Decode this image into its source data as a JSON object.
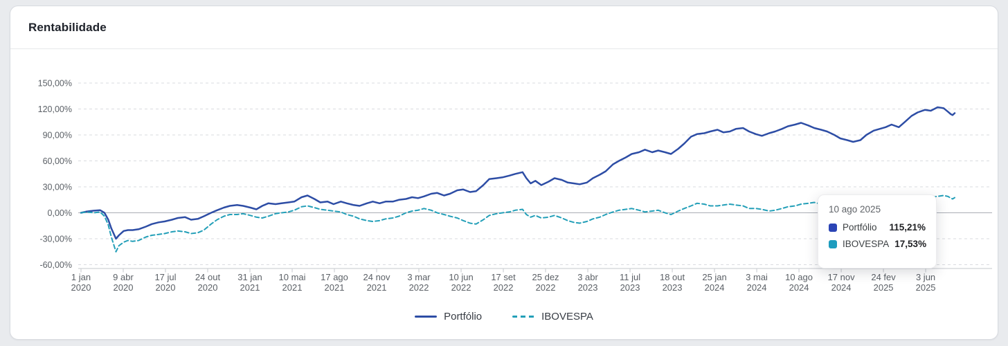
{
  "card": {
    "title": "Rentabilidade"
  },
  "tooltip": {
    "date": "10 ago 2025",
    "rows": [
      {
        "label": "Portfólio",
        "value": "115,21%",
        "color": "#2b44b5"
      },
      {
        "label": "IBOVESPA",
        "value": "17,53%",
        "color": "#1d9cbe"
      }
    ]
  },
  "chart_data": {
    "type": "line",
    "title": "Rentabilidade",
    "ylabel": "",
    "xlabel": "",
    "ylim": [
      -60,
      150
    ],
    "grid": "horizontal-dashed",
    "zero_line": true,
    "legend_position": "bottom-center",
    "yticks": [
      {
        "v": 150,
        "label": "150,00%"
      },
      {
        "v": 120,
        "label": "120,00%"
      },
      {
        "v": 90,
        "label": "90,00%"
      },
      {
        "v": 60,
        "label": "60,00%"
      },
      {
        "v": 30,
        "label": "30,00%"
      },
      {
        "v": 0,
        "label": "0,00%"
      },
      {
        "v": -30,
        "label": "-30,00%"
      },
      {
        "v": -60,
        "label": "-60,00%"
      }
    ],
    "xticks": [
      {
        "d": "2020-01-01",
        "l1": "1 jan",
        "l2": "2020"
      },
      {
        "d": "2020-04-09",
        "l1": "9 abr",
        "l2": "2020"
      },
      {
        "d": "2020-07-17",
        "l1": "17 jul",
        "l2": "2020"
      },
      {
        "d": "2020-10-24",
        "l1": "24 out",
        "l2": "2020"
      },
      {
        "d": "2021-01-31",
        "l1": "31 jan",
        "l2": "2021"
      },
      {
        "d": "2021-05-10",
        "l1": "10 mai",
        "l2": "2021"
      },
      {
        "d": "2021-08-17",
        "l1": "17 ago",
        "l2": "2021"
      },
      {
        "d": "2021-11-24",
        "l1": "24 nov",
        "l2": "2021"
      },
      {
        "d": "2022-03-03",
        "l1": "3 mar",
        "l2": "2022"
      },
      {
        "d": "2022-06-10",
        "l1": "10 jun",
        "l2": "2022"
      },
      {
        "d": "2022-09-17",
        "l1": "17 set",
        "l2": "2022"
      },
      {
        "d": "2022-12-25",
        "l1": "25 dez",
        "l2": "2022"
      },
      {
        "d": "2023-04-03",
        "l1": "3 abr",
        "l2": "2023"
      },
      {
        "d": "2023-07-11",
        "l1": "11 jul",
        "l2": "2023"
      },
      {
        "d": "2023-10-18",
        "l1": "18 out",
        "l2": "2023"
      },
      {
        "d": "2024-01-25",
        "l1": "25 jan",
        "l2": "2024"
      },
      {
        "d": "2024-05-03",
        "l1": "3 mai",
        "l2": "2024"
      },
      {
        "d": "2024-08-10",
        "l1": "10 ago",
        "l2": "2024"
      },
      {
        "d": "2024-11-17",
        "l1": "17 nov",
        "l2": "2024"
      },
      {
        "d": "2025-02-24",
        "l1": "24 fev",
        "l2": "2025"
      },
      {
        "d": "2025-06-03",
        "l1": "3 jun",
        "l2": "2025"
      }
    ],
    "x": [
      "2020-01-01",
      "2020-01-15",
      "2020-02-01",
      "2020-02-15",
      "2020-02-25",
      "2020-03-05",
      "2020-03-12",
      "2020-03-23",
      "2020-03-30",
      "2020-04-10",
      "2020-04-20",
      "2020-05-01",
      "2020-05-15",
      "2020-06-01",
      "2020-06-15",
      "2020-07-01",
      "2020-07-15",
      "2020-08-01",
      "2020-08-15",
      "2020-09-01",
      "2020-09-15",
      "2020-10-01",
      "2020-10-15",
      "2020-11-01",
      "2020-11-15",
      "2020-12-01",
      "2020-12-15",
      "2021-01-01",
      "2021-01-15",
      "2021-02-01",
      "2021-02-15",
      "2021-03-01",
      "2021-03-15",
      "2021-04-01",
      "2021-04-15",
      "2021-05-01",
      "2021-05-15",
      "2021-06-01",
      "2021-06-15",
      "2021-07-01",
      "2021-07-15",
      "2021-08-01",
      "2021-08-15",
      "2021-09-01",
      "2021-09-15",
      "2021-10-01",
      "2021-10-15",
      "2021-11-01",
      "2021-11-15",
      "2021-12-01",
      "2021-12-15",
      "2022-01-01",
      "2022-01-15",
      "2022-02-01",
      "2022-02-15",
      "2022-03-01",
      "2022-03-15",
      "2022-04-01",
      "2022-04-15",
      "2022-05-01",
      "2022-05-15",
      "2022-06-01",
      "2022-06-15",
      "2022-07-01",
      "2022-07-15",
      "2022-08-01",
      "2022-08-15",
      "2022-09-01",
      "2022-09-15",
      "2022-10-01",
      "2022-10-15",
      "2022-11-01",
      "2022-11-10",
      "2022-11-20",
      "2022-12-01",
      "2022-12-15",
      "2023-01-01",
      "2023-01-15",
      "2023-02-01",
      "2023-02-15",
      "2023-03-01",
      "2023-03-15",
      "2023-04-01",
      "2023-04-15",
      "2023-05-01",
      "2023-05-15",
      "2023-06-01",
      "2023-06-15",
      "2023-07-01",
      "2023-07-15",
      "2023-08-01",
      "2023-08-15",
      "2023-09-01",
      "2023-09-15",
      "2023-10-01",
      "2023-10-15",
      "2023-11-01",
      "2023-11-15",
      "2023-12-01",
      "2023-12-15",
      "2024-01-01",
      "2024-01-15",
      "2024-02-01",
      "2024-02-15",
      "2024-03-01",
      "2024-03-15",
      "2024-04-01",
      "2024-04-15",
      "2024-05-01",
      "2024-05-15",
      "2024-06-01",
      "2024-06-15",
      "2024-07-01",
      "2024-07-15",
      "2024-08-01",
      "2024-08-15",
      "2024-09-01",
      "2024-09-15",
      "2024-10-01",
      "2024-10-15",
      "2024-11-01",
      "2024-11-15",
      "2024-12-01",
      "2024-12-15",
      "2025-01-01",
      "2025-01-15",
      "2025-02-01",
      "2025-02-15",
      "2025-03-01",
      "2025-03-15",
      "2025-04-01",
      "2025-04-15",
      "2025-05-01",
      "2025-05-15",
      "2025-06-01",
      "2025-06-15",
      "2025-07-01",
      "2025-07-15",
      "2025-07-25",
      "2025-08-01",
      "2025-08-05",
      "2025-08-10"
    ],
    "series": [
      {
        "name": "Portfólio",
        "color": "#2d4da5",
        "style": "solid",
        "final_value": "115,21%",
        "values": [
          0,
          1.5,
          2.5,
          3,
          0,
          -8,
          -18,
          -30,
          -26,
          -21,
          -20,
          -20,
          -19,
          -16,
          -13,
          -11,
          -10,
          -8,
          -6,
          -5,
          -8,
          -7,
          -4,
          0,
          3,
          6,
          8,
          9,
          8,
          6,
          4,
          8,
          11,
          10,
          11,
          12,
          13,
          18,
          20,
          16,
          12,
          13,
          10,
          13,
          11,
          9,
          8,
          11,
          13,
          11,
          13,
          13,
          15,
          16,
          18,
          17,
          19,
          22,
          23,
          20,
          22,
          26,
          27,
          24,
          25,
          32,
          39,
          40,
          41,
          43,
          45,
          47,
          40,
          34,
          37,
          32,
          36,
          40,
          38,
          35,
          34,
          33,
          35,
          40,
          44,
          48,
          56,
          60,
          64,
          68,
          70,
          73,
          70,
          72,
          70,
          68,
          74,
          80,
          88,
          91,
          92,
          94,
          96,
          93,
          94,
          97,
          98,
          94,
          91,
          89,
          92,
          94,
          97,
          100,
          102,
          104,
          101,
          98,
          96,
          94,
          90,
          86,
          84,
          82,
          84,
          90,
          95,
          97,
          99,
          102,
          99,
          105,
          112,
          116,
          119,
          118,
          122,
          121,
          117,
          114,
          113,
          115.21
        ]
      },
      {
        "name": "IBOVESPA",
        "color": "#239fb8",
        "style": "dashed",
        "final_value": "17,53%",
        "values": [
          0,
          1,
          0,
          1,
          -4,
          -14,
          -28,
          -45,
          -38,
          -34,
          -32,
          -33,
          -32,
          -28,
          -26,
          -25,
          -24,
          -22,
          -21,
          -22,
          -24,
          -23,
          -20,
          -13,
          -8,
          -4,
          -2,
          -2,
          -1,
          -3,
          -5,
          -6,
          -4,
          -1,
          0,
          1,
          3,
          7,
          8,
          6,
          4,
          3,
          2,
          1,
          -2,
          -4,
          -7,
          -9,
          -10,
          -9,
          -7,
          -6,
          -4,
          0,
          2,
          3,
          5,
          3,
          0,
          -2,
          -4,
          -6,
          -9,
          -12,
          -13,
          -8,
          -3,
          -1,
          0,
          1,
          3,
          4,
          -2,
          -5,
          -3,
          -6,
          -5,
          -3,
          -6,
          -9,
          -11,
          -12,
          -10,
          -7,
          -5,
          -2,
          1,
          3,
          4,
          5,
          3,
          1,
          2,
          3,
          0,
          -2,
          2,
          5,
          8,
          11,
          10,
          8,
          8,
          9,
          10,
          9,
          8,
          5,
          5,
          4,
          2,
          3,
          5,
          7,
          8,
          10,
          11,
          12,
          10,
          9,
          8,
          6,
          4,
          1,
          2,
          4,
          6,
          8,
          10,
          12,
          11,
          12,
          14,
          15,
          16,
          18,
          19,
          20,
          19,
          17,
          16,
          17.53
        ]
      }
    ]
  }
}
